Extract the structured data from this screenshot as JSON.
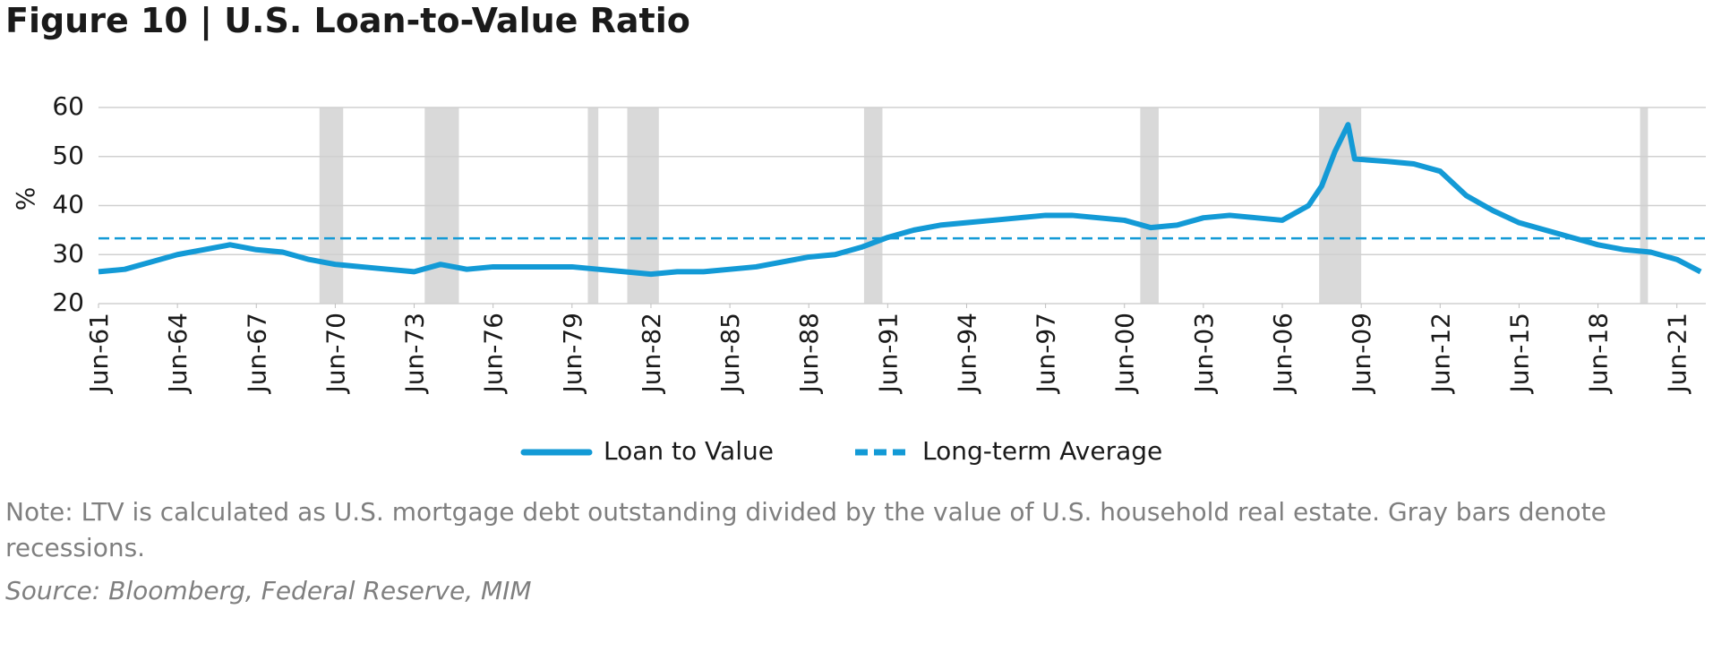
{
  "chart_data": {
    "type": "line",
    "title": "Figure 10 | U.S. Loan-to-Value Ratio",
    "y_label": "%",
    "x": [
      1961.5,
      1962.5,
      1963.5,
      1964.5,
      1965.5,
      1966.5,
      1967.5,
      1968.5,
      1969.5,
      1970.5,
      1971.5,
      1972.5,
      1973.5,
      1974.5,
      1975.5,
      1976.5,
      1977.5,
      1978.5,
      1979.5,
      1980.5,
      1981.5,
      1982.5,
      1983.5,
      1984.5,
      1985.5,
      1986.5,
      1987.5,
      1988.5,
      1989.5,
      1990.5,
      1991.5,
      1992.5,
      1993.5,
      1994.5,
      1995.5,
      1996.5,
      1997.5,
      1998.5,
      1999.5,
      2000.5,
      2001.5,
      2002.5,
      2003.5,
      2004.5,
      2005.5,
      2006.5,
      2007.5,
      2008.0,
      2008.5,
      2009.0,
      2009.25,
      2010.5,
      2011.5,
      2012.5,
      2013.5,
      2014.5,
      2015.5,
      2016.5,
      2017.5,
      2018.5,
      2019.5,
      2020.5,
      2021.5,
      2022.4
    ],
    "series": [
      {
        "name": "Loan to Value",
        "color": "#139ad6",
        "values": [
          26.5,
          27,
          28.5,
          30,
          31,
          32,
          31,
          30.5,
          29,
          28,
          27.5,
          27,
          26.5,
          28,
          27,
          27.5,
          27.5,
          27.5,
          27.5,
          27,
          26.5,
          26,
          26.5,
          26.5,
          27,
          27.5,
          28.5,
          29.5,
          30,
          31.5,
          33.5,
          35,
          36,
          36.5,
          37,
          37.5,
          38,
          38,
          37.5,
          37,
          35.5,
          36,
          37.5,
          38,
          37.5,
          37,
          40,
          44,
          51,
          56.5,
          49.5,
          49,
          48.5,
          47,
          42,
          39,
          36.5,
          35,
          33.5,
          32,
          31,
          30.5,
          29,
          26.5
        ]
      }
    ],
    "reference_line": {
      "name": "Long-term Average",
      "value": 33.3,
      "color": "#139ad6"
    },
    "recessions": [
      [
        1969.9,
        1970.8
      ],
      [
        1973.9,
        1975.2
      ],
      [
        1980.1,
        1980.5
      ],
      [
        1981.6,
        1982.8
      ],
      [
        1990.6,
        1991.3
      ],
      [
        2001.1,
        2001.8
      ],
      [
        2007.9,
        2009.5
      ],
      [
        2020.1,
        2020.4
      ]
    ],
    "recession_color": "#d9d9d9",
    "xlim": [
      1961.5,
      2022.6
    ],
    "xticks": [
      {
        "value": 1961.5,
        "label": "Jun-61"
      },
      {
        "value": 1964.5,
        "label": "Jun-64"
      },
      {
        "value": 1967.5,
        "label": "Jun-67"
      },
      {
        "value": 1970.5,
        "label": "Jun-70"
      },
      {
        "value": 1973.5,
        "label": "Jun-73"
      },
      {
        "value": 1976.5,
        "label": "Jun-76"
      },
      {
        "value": 1979.5,
        "label": "Jun-79"
      },
      {
        "value": 1982.5,
        "label": "Jun-82"
      },
      {
        "value": 1985.5,
        "label": "Jun-85"
      },
      {
        "value": 1988.5,
        "label": "Jun-88"
      },
      {
        "value": 1991.5,
        "label": "Jun-91"
      },
      {
        "value": 1994.5,
        "label": "Jun-94"
      },
      {
        "value": 1997.5,
        "label": "Jun-97"
      },
      {
        "value": 2000.5,
        "label": "Jun-00"
      },
      {
        "value": 2003.5,
        "label": "Jun-03"
      },
      {
        "value": 2006.5,
        "label": "Jun-06"
      },
      {
        "value": 2009.5,
        "label": "Jun-09"
      },
      {
        "value": 2012.5,
        "label": "Jun-12"
      },
      {
        "value": 2015.5,
        "label": "Jun-15"
      },
      {
        "value": 2018.5,
        "label": "Jun-18"
      },
      {
        "value": 2021.5,
        "label": "Jun-21"
      }
    ],
    "ylim": [
      20,
      60
    ],
    "yticks": [
      20,
      30,
      40,
      50,
      60
    ],
    "grid": true,
    "note": "Note: LTV is calculated as U.S. mortgage debt outstanding divided by the value of U.S. household real estate. Gray bars denote recessions.",
    "source": "Source: Bloomberg, Federal Reserve, MIM"
  }
}
